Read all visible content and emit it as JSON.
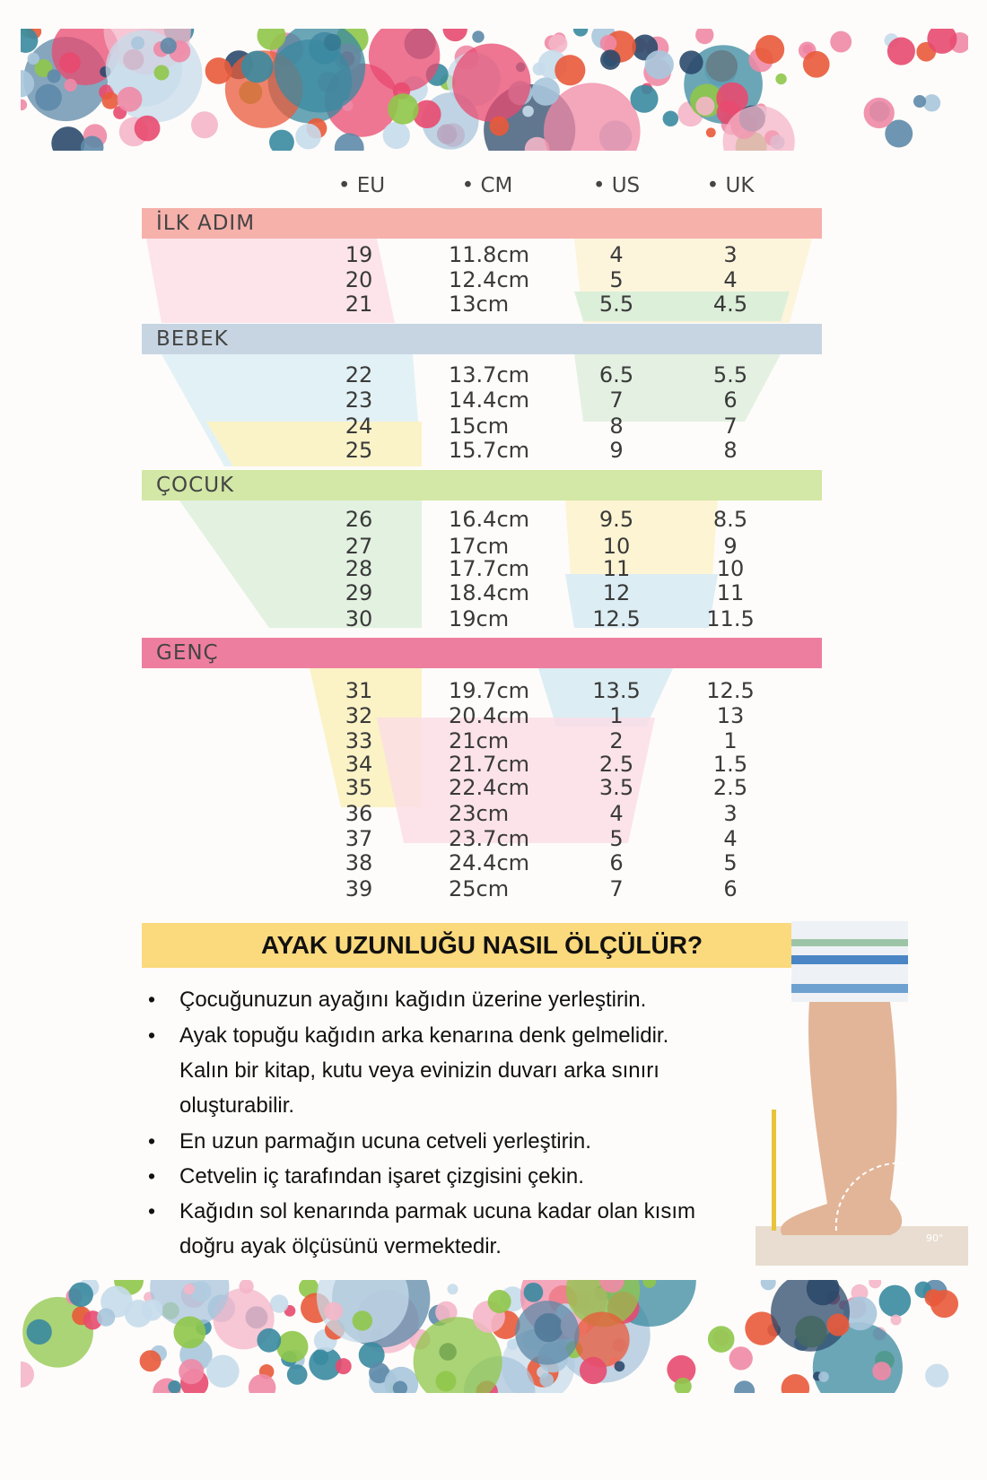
{
  "columns": [
    "EU",
    "CM",
    "US",
    "UK"
  ],
  "groups": [
    {
      "label": "İLK ADIM",
      "color": "#f6b1ab",
      "rows": [
        [
          "19",
          "11.8cm",
          "4",
          "3"
        ],
        [
          "20",
          "12.4cm",
          "5",
          "4"
        ],
        [
          "21",
          "13cm",
          "5.5",
          "4.5"
        ]
      ]
    },
    {
      "label": "BEBEK",
      "color": "#c7d5e3",
      "rows": [
        [
          "22",
          "13.7cm",
          "6.5",
          "5.5"
        ],
        [
          "23",
          "14.4cm",
          "7",
          "6"
        ],
        [
          "24",
          "15cm",
          "8",
          "7"
        ],
        [
          "25",
          "15.7cm",
          "9",
          "8"
        ]
      ]
    },
    {
      "label": "ÇOCUK",
      "color": "#d3e7a6",
      "rows": [
        [
          "26",
          "16.4cm",
          "9.5",
          "8.5"
        ],
        [
          "27",
          "17cm",
          "10",
          "9"
        ],
        [
          "28",
          "17.7cm",
          "11",
          "10"
        ],
        [
          "29",
          "18.4cm",
          "12",
          "11"
        ],
        [
          "30",
          "19cm",
          "12.5",
          "11.5"
        ]
      ]
    },
    {
      "label": "GENÇ",
      "color": "#ee7ea0",
      "rows": [
        [
          "31",
          "19.7cm",
          "13.5",
          "12.5"
        ],
        [
          "32",
          "20.4cm",
          "1",
          "13"
        ],
        [
          "33",
          "21cm",
          "2",
          "1"
        ],
        [
          "34",
          "21.7cm",
          "2.5",
          "1.5"
        ],
        [
          "35",
          "22.4cm",
          "3.5",
          "2.5"
        ],
        [
          "36",
          "23cm",
          "4",
          "3"
        ],
        [
          "37",
          "23.7cm",
          "5",
          "4"
        ],
        [
          "38",
          "24.4cm",
          "6",
          "5"
        ],
        [
          "39",
          "25cm",
          "7",
          "6"
        ]
      ]
    }
  ],
  "howto": {
    "title": "AYAK UZUNLUĞU NASIL ÖLÇÜLÜR?",
    "lines": [
      "Çocuğunuzun ayağını kağıdın üzerine yerleştirin.",
      "Ayak topuğu kağıdın arka kenarına denk gelmelidir.",
      "Kalın bir kitap, kutu veya evinizin duvarı arka sınırı",
      "oluşturabilir.",
      "En uzun parmağın ucuna cetveli yerleştirin.",
      "Cetvelin iç tarafından işaret çizgisini çekin.",
      "Kağıdın sol kenarında parmak ucuna kadar olan kısım",
      "doğru ayak ölçüsünü vermektedir."
    ],
    "photo_label": "90°"
  },
  "dot_colors": [
    "#e84a6f",
    "#2c4a6b",
    "#8fc74a",
    "#a9c6dc",
    "#f08aa6",
    "#e95a3a",
    "#5e8aa8",
    "#c7dceb",
    "#f4b6c8",
    "#3a8aa0"
  ]
}
